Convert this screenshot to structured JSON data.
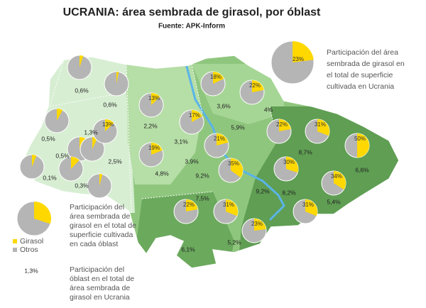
{
  "header": {
    "title": "UCRANIA: área sembrada de girasol, por óblast",
    "source": "Fuente: APK-Inform"
  },
  "legend_top": {
    "value": 23,
    "label": "23%",
    "lines": [
      "Participación del área",
      "sembrada de girasol en",
      "el total de superficie",
      "cultivada en Ucrania"
    ]
  },
  "legend_pie": {
    "value": 30,
    "lines": [
      "Participación del",
      "área sembrada de",
      "girasol en el total de",
      "superficie cultivada",
      "en cada óblast"
    ],
    "keys": [
      "Girasol",
      "Otros"
    ]
  },
  "legend_share": {
    "value": 1.3,
    "label": "1,3%",
    "lines": [
      "Participación del",
      "óblast en el total de",
      "área sembrada de",
      "girasol en Ucrania"
    ]
  },
  "pies": [
    {
      "value": 5
    },
    {
      "value": 3
    },
    {
      "value": 8
    },
    {
      "value": 10
    },
    {
      "value": 7
    },
    {
      "value": 12
    },
    {
      "value": 6
    },
    {
      "value": 4
    },
    {
      "value": 13,
      "label": "13%"
    },
    {
      "value": 18,
      "label": "18%"
    },
    {
      "value": 22,
      "label": "22%"
    },
    {
      "value": 17,
      "label": "17%"
    },
    {
      "value": 13,
      "label": "13%"
    },
    {
      "value": 19,
      "label": "19%"
    },
    {
      "value": 21,
      "label": "21%"
    },
    {
      "value": 22,
      "label": "22%"
    },
    {
      "value": 31,
      "label": "31%"
    },
    {
      "value": 50,
      "label": "50%"
    },
    {
      "value": 35,
      "label": "35%"
    },
    {
      "value": 30,
      "label": "30%"
    },
    {
      "value": 34,
      "label": "34%"
    },
    {
      "value": 22,
      "label": "22%"
    },
    {
      "value": 31,
      "label": "31%"
    },
    {
      "value": 31,
      "label": "31%"
    },
    {
      "value": 23,
      "label": "23%"
    }
  ],
  "shares": [
    {
      "value": 0.6,
      "label": "0,6%"
    },
    {
      "value": 0.6,
      "label": "0,6%"
    },
    {
      "value": 0.5,
      "label": "0,5%"
    },
    {
      "value": 1.3,
      "label": "1,3%"
    },
    {
      "value": 0.5,
      "label": "0,5%"
    },
    {
      "value": 0.1,
      "label": "0,1%"
    },
    {
      "value": 0.3,
      "label": "0,3%"
    },
    {
      "value": 2.2,
      "label": "2,2%"
    },
    {
      "value": 2.5,
      "label": "2,5%"
    },
    {
      "value": 3.1,
      "label": "3,1%"
    },
    {
      "value": 3.6,
      "label": "3,6%"
    },
    {
      "value": 4,
      "label": "4%"
    },
    {
      "value": 5.9,
      "label": "5,9%"
    },
    {
      "value": 3.9,
      "label": "3,9%"
    },
    {
      "value": 4.8,
      "label": "4,8%"
    },
    {
      "value": 9.2,
      "label": "9,2%"
    },
    {
      "value": 8.7,
      "label": "8,7%"
    },
    {
      "value": 6.6,
      "label": "6,6%"
    },
    {
      "value": 9.2,
      "label": "9,2%"
    },
    {
      "value": 8.2,
      "label": "8,2%"
    },
    {
      "value": 5.4,
      "label": "5,4%"
    },
    {
      "value": 7.5,
      "label": "7,5%"
    },
    {
      "value": 5.2,
      "label": "5,2%"
    },
    {
      "value": 6.1,
      "label": "6,1%"
    }
  ]
}
